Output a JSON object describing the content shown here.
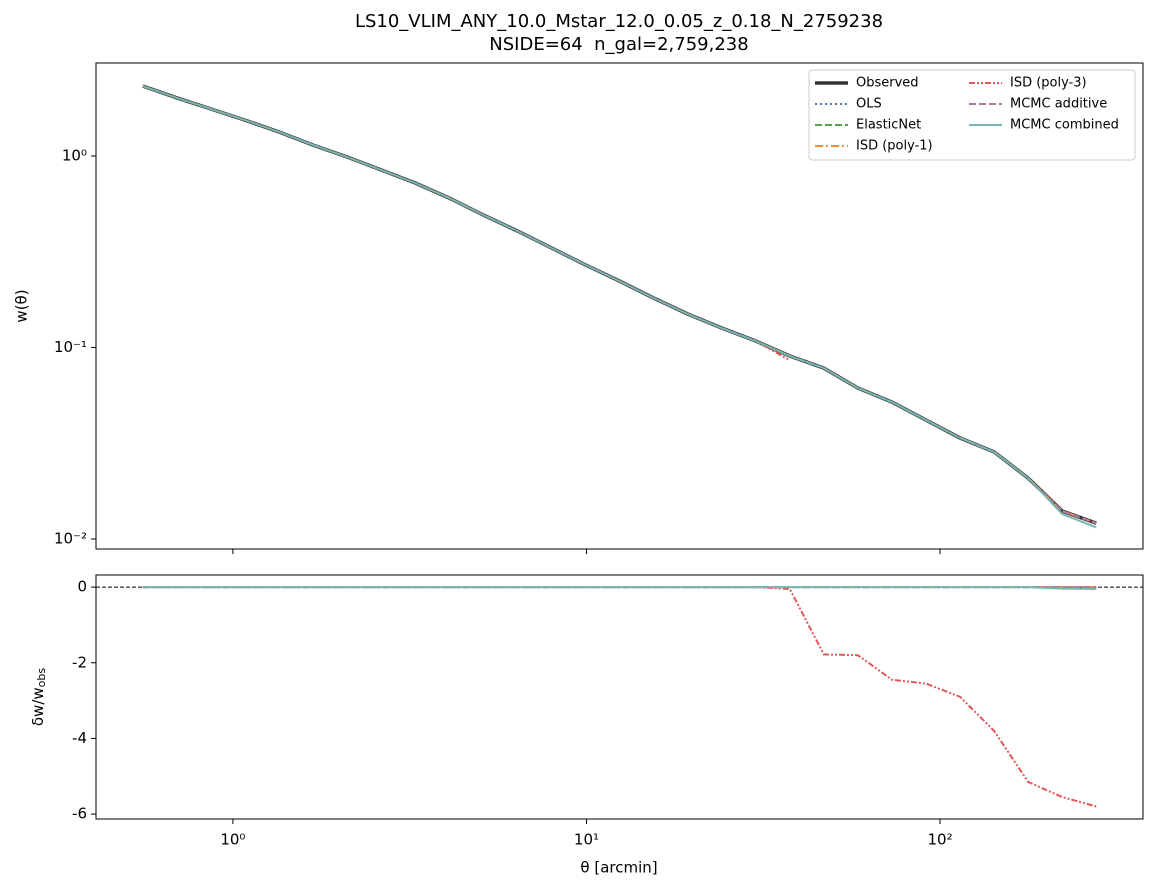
{
  "chart_data": [
    {
      "type": "line",
      "title": "LS10_VLIM_ANY_10.0_Mstar_12.0_0.05_z_0.18_N_2759238",
      "subtitle": "NSIDE=64  n_gal=2,759,238",
      "ylabel": "w(θ)",
      "xlog": true,
      "ylog": true,
      "xlim": [
        0.41,
        375
      ],
      "ylim": [
        0.00887,
        3.06
      ],
      "yticks": [
        {
          "value": 1,
          "label": "10⁰"
        },
        {
          "value": 0.1,
          "label": "10⁻¹"
        },
        {
          "value": 0.01,
          "label": "10⁻²"
        }
      ],
      "legend": "upper right",
      "x": [
        0.556,
        0.695,
        0.867,
        1.082,
        1.351,
        1.686,
        2.105,
        2.628,
        3.28,
        4.094,
        5.11,
        6.378,
        7.962,
        9.94,
        12.4,
        15.48,
        19.33,
        24.13,
        30.11,
        37.59,
        46.92,
        58.57,
        73.11,
        91.26,
        113.9,
        142.2,
        177.5,
        221.6,
        276.6
      ],
      "series": [
        {
          "name": "Observed",
          "color": "#333333",
          "style": "solid",
          "linewidth": 3.5,
          "values": [
            2.32,
            2.01,
            1.76,
            1.54,
            1.335,
            1.14,
            0.988,
            0.845,
            0.723,
            0.603,
            0.492,
            0.406,
            0.331,
            0.27,
            0.2225,
            0.1814,
            0.1496,
            0.1264,
            0.1081,
            0.0903,
            0.0781,
            0.0614,
            0.0519,
            0.0418,
            0.0337,
            0.0285,
            0.0208,
            0.014,
            0.0121
          ]
        },
        {
          "name": "OLS",
          "color": "#4e79a7",
          "style": "dotted",
          "linewidth": 2,
          "values": [
            2.32,
            2.01,
            1.76,
            1.54,
            1.335,
            1.14,
            0.988,
            0.845,
            0.723,
            0.603,
            0.492,
            0.406,
            0.331,
            0.27,
            0.2225,
            0.1814,
            0.1496,
            0.1264,
            0.1081,
            0.0903,
            0.0781,
            0.0614,
            0.0519,
            0.0418,
            0.0337,
            0.0285,
            0.0208,
            0.014,
            0.0121
          ]
        },
        {
          "name": "ElasticNet",
          "color": "#59a14f",
          "style": "dashed",
          "linewidth": 2,
          "values": [
            2.32,
            2.01,
            1.76,
            1.54,
            1.335,
            1.14,
            0.988,
            0.845,
            0.723,
            0.603,
            0.492,
            0.406,
            0.331,
            0.27,
            0.2225,
            0.1814,
            0.1496,
            0.1264,
            0.1081,
            0.0903,
            0.0781,
            0.0614,
            0.0519,
            0.0418,
            0.0337,
            0.0285,
            0.0208,
            0.014,
            0.0121
          ]
        },
        {
          "name": "ISD (poly-1)",
          "color": "#f28e2b",
          "style": "dashdot",
          "linewidth": 2,
          "values": [
            2.32,
            2.01,
            1.76,
            1.54,
            1.335,
            1.14,
            0.988,
            0.845,
            0.723,
            0.603,
            0.492,
            0.406,
            0.331,
            0.27,
            0.2225,
            0.1814,
            0.1496,
            0.1264,
            0.1081,
            0.0903,
            0.0781,
            0.0614,
            0.0519,
            0.0418,
            0.0337,
            0.0285,
            0.0208,
            0.014,
            0.0121
          ]
        },
        {
          "name": "ISD (poly-3)",
          "color": "#e15759",
          "style": "dashdotdot",
          "linewidth": 2,
          "values": [
            2.32,
            2.01,
            1.76,
            1.54,
            1.335,
            1.14,
            0.988,
            0.845,
            0.723,
            0.603,
            0.492,
            0.406,
            0.331,
            0.27,
            0.2225,
            0.1814,
            0.1496,
            0.1264,
            0.1081,
            0.0858,
            null,
            null,
            null,
            null,
            null,
            null,
            null,
            null,
            null
          ]
        },
        {
          "name": "MCMC additive",
          "color": "#b07aa1",
          "style": "dashed",
          "linewidth": 2,
          "values": [
            2.32,
            2.01,
            1.76,
            1.54,
            1.335,
            1.14,
            0.988,
            0.845,
            0.723,
            0.603,
            0.492,
            0.406,
            0.331,
            0.27,
            0.2225,
            0.1814,
            0.1496,
            0.1264,
            0.1081,
            0.0903,
            0.0781,
            0.0614,
            0.0519,
            0.0418,
            0.0337,
            0.0285,
            0.0208,
            0.014,
            0.0121
          ]
        },
        {
          "name": "MCMC combined",
          "color": "#76b7b2",
          "style": "solid",
          "linewidth": 2,
          "values": [
            2.32,
            2.01,
            1.76,
            1.54,
            1.335,
            1.14,
            0.988,
            0.845,
            0.723,
            0.603,
            0.492,
            0.406,
            0.331,
            0.27,
            0.2225,
            0.1814,
            0.1496,
            0.1264,
            0.1081,
            0.0903,
            0.0781,
            0.0614,
            0.0519,
            0.0418,
            0.0337,
            0.0285,
            0.0208,
            0.0135,
            0.0115
          ]
        }
      ]
    },
    {
      "type": "line",
      "xlabel": "θ [arcmin]",
      "ylabel": "δw/w",
      "ylabel_sub": "obs",
      "xlog": true,
      "ylog": false,
      "xlim": [
        0.41,
        375
      ],
      "ylim": [
        -6.13,
        0.32
      ],
      "xticks": [
        {
          "value": 1,
          "label": "10⁰"
        },
        {
          "value": 10,
          "label": "10¹"
        },
        {
          "value": 100,
          "label": "10²"
        }
      ],
      "yticks": [
        0,
        -2,
        -4,
        -6
      ],
      "hline": 0,
      "x": [
        0.556,
        0.695,
        0.867,
        1.082,
        1.351,
        1.686,
        2.105,
        2.628,
        3.28,
        4.094,
        5.11,
        6.378,
        7.962,
        9.94,
        12.4,
        15.48,
        19.33,
        24.13,
        30.11,
        37.59,
        46.92,
        58.57,
        73.11,
        91.26,
        113.9,
        142.2,
        177.5,
        221.6,
        276.6
      ],
      "series": [
        {
          "color": "#4e79a7",
          "style": "dotted",
          "linewidth": 2,
          "values": [
            0,
            0,
            0,
            0,
            0,
            0,
            0,
            0,
            0,
            0,
            0,
            0,
            0,
            0,
            0,
            0,
            0,
            0,
            0,
            0,
            0,
            0,
            0,
            0,
            0,
            0,
            0,
            0,
            0
          ]
        },
        {
          "color": "#59a14f",
          "style": "dashed",
          "linewidth": 2,
          "values": [
            0,
            0,
            0,
            0,
            0,
            0,
            0,
            0,
            0,
            0,
            0,
            0,
            0,
            0,
            0,
            0,
            0,
            0,
            0,
            0,
            0,
            0,
            0,
            0,
            0,
            0,
            0,
            0,
            0
          ]
        },
        {
          "color": "#f28e2b",
          "style": "dashdot",
          "linewidth": 2,
          "values": [
            0,
            0,
            0,
            0,
            0,
            0,
            0,
            0,
            0,
            0,
            0,
            0,
            0,
            0,
            0,
            0,
            0,
            0,
            0,
            0,
            0,
            0,
            0,
            0,
            0,
            0,
            0,
            0,
            0
          ]
        },
        {
          "color": "#e15759",
          "style": "dashdotdot",
          "linewidth": 2,
          "values": [
            0,
            0,
            0,
            0,
            0,
            0,
            0,
            0,
            0,
            0,
            0,
            0,
            0,
            0,
            0,
            0,
            0,
            0,
            0,
            -0.05,
            -1.78,
            -1.8,
            -2.45,
            -2.55,
            -2.9,
            -3.8,
            -5.15,
            -5.55,
            -5.8
          ]
        },
        {
          "color": "#b07aa1",
          "style": "dashed",
          "linewidth": 2,
          "values": [
            0,
            0,
            0,
            0,
            0,
            0,
            0,
            0,
            0,
            0,
            0,
            0,
            0,
            0,
            0,
            0,
            0,
            0,
            0,
            0,
            0,
            0,
            0,
            0,
            0,
            0,
            0,
            0,
            0
          ]
        },
        {
          "color": "#76b7b2",
          "style": "solid",
          "linewidth": 2,
          "values": [
            0,
            0,
            0,
            0,
            0,
            0,
            0,
            0,
            0,
            0,
            0,
            0,
            0,
            0,
            0,
            0,
            0,
            0,
            0,
            0,
            0,
            0,
            0,
            0,
            0,
            0,
            0,
            -0.04,
            -0.05
          ]
        }
      ]
    }
  ]
}
